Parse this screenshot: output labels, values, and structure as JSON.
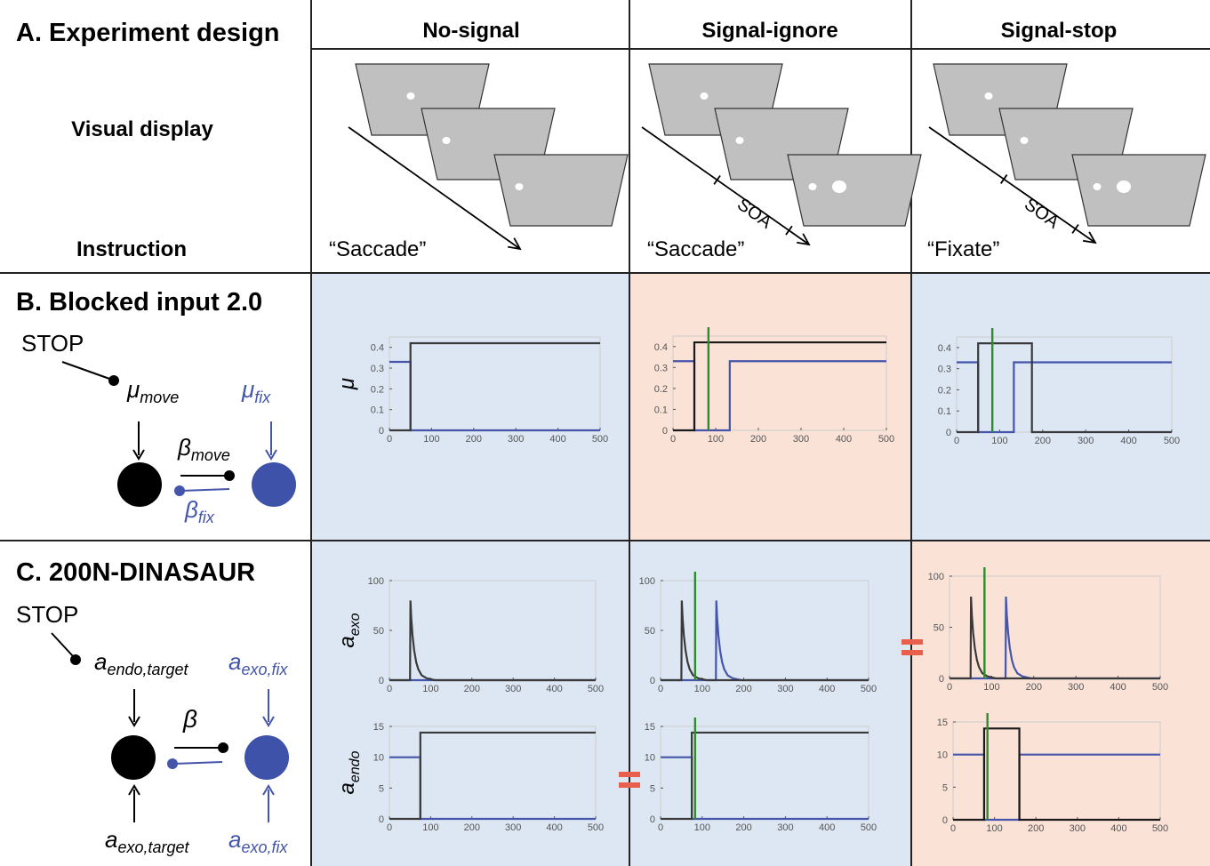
{
  "figure": {
    "title_a": "A. Experiment design",
    "columns": [
      "No-signal",
      "Signal-ignore",
      "Signal-stop"
    ],
    "row_labels": [
      "Visual display",
      "Instruction"
    ],
    "instructions": [
      "“Saccade”",
      "“Saccade”",
      "“Fixate”"
    ],
    "soa": "SOA",
    "title_b": "B. Blocked input 2.0",
    "title_c": "C. 200N-DINASAUR",
    "stop": "STOP",
    "b_diagram": {
      "input_move": [
        "μ",
        "move"
      ],
      "input_fix": [
        "μ",
        "fix"
      ],
      "inhibit_move": [
        "β",
        "move"
      ],
      "inhibit_fix": [
        "β",
        "fix"
      ]
    },
    "c_diagram": {
      "endo_target": [
        "a",
        "endo,target"
      ],
      "exo_fix_top": [
        "a",
        "exo,fix"
      ],
      "beta": "β",
      "exo_target": [
        "a",
        "exo,target"
      ],
      "exo_fix_bottom": [
        "a",
        "exo,fix"
      ]
    }
  },
  "chart_data": [
    {
      "type": "line",
      "ylabel": "μ",
      "xlim": [
        0,
        500
      ],
      "ylim": [
        0,
        0.45
      ],
      "xticks": [
        0,
        100,
        200,
        300,
        400,
        500
      ],
      "yticks": [
        0,
        0.1,
        0.2,
        0.3,
        0.4
      ],
      "series": [
        {
          "color": "#4455aa",
          "x": [
            0,
            50,
            50,
            500
          ],
          "values": [
            0.33,
            0.33,
            0,
            0
          ]
        },
        {
          "color": "#3a3a3a",
          "x": [
            0,
            50,
            50,
            500
          ],
          "values": [
            0,
            0,
            0.42,
            0.42
          ]
        }
      ]
    },
    {
      "type": "line",
      "xlim": [
        0,
        500
      ],
      "ylim": [
        0,
        0.45
      ],
      "xticks": [
        0,
        100,
        200,
        300,
        400,
        500
      ],
      "yticks": [
        0,
        0.1,
        0.2,
        0.3,
        0.4
      ],
      "vlines": [
        83
      ],
      "vline_color": "#2e8b2e",
      "series": [
        {
          "color": "#4455aa",
          "x": [
            0,
            50,
            50,
            133,
            133,
            500
          ],
          "values": [
            0.33,
            0.33,
            0,
            0,
            0.33,
            0.33
          ]
        },
        {
          "color": "#1a1a1a",
          "x": [
            0,
            50,
            50,
            500
          ],
          "values": [
            0,
            0,
            0.42,
            0.42
          ]
        }
      ]
    },
    {
      "type": "line",
      "xlim": [
        0,
        500
      ],
      "ylim": [
        0,
        0.45
      ],
      "xticks": [
        0,
        100,
        200,
        300,
        400,
        500
      ],
      "yticks": [
        0,
        0.1,
        0.2,
        0.3,
        0.4
      ],
      "vlines": [
        83
      ],
      "vline_color": "#2e8b2e",
      "series": [
        {
          "color": "#4455aa",
          "x": [
            0,
            50,
            50,
            133,
            133,
            500
          ],
          "values": [
            0.33,
            0.33,
            0,
            0,
            0.33,
            0.33
          ]
        },
        {
          "color": "#3a3a3a",
          "x": [
            0,
            50,
            50,
            175,
            175,
            500
          ],
          "values": [
            0,
            0,
            0.42,
            0.42,
            0,
            0
          ]
        }
      ]
    },
    {
      "type": "line",
      "ylabel": "a",
      "ylabel_sub": "exo",
      "xlim": [
        0,
        500
      ],
      "ylim": [
        0,
        100
      ],
      "xticks": [
        0,
        100,
        200,
        300,
        400,
        500
      ],
      "yticks": [
        0,
        50,
        100
      ],
      "series": [
        {
          "color": "#4455aa",
          "x": [
            0,
            500
          ],
          "values": [
            0,
            0
          ]
        },
        {
          "color": "#3a3a3a",
          "x": [
            0,
            50,
            51,
            53,
            56,
            60,
            65,
            70,
            78,
            90,
            110,
            500
          ],
          "values": [
            0,
            0,
            80,
            62,
            45,
            30,
            18,
            11,
            5,
            2,
            0,
            0
          ]
        }
      ]
    },
    {
      "type": "line",
      "xlim": [
        0,
        500
      ],
      "ylim": [
        0,
        100
      ],
      "xticks": [
        0,
        100,
        200,
        300,
        400,
        500
      ],
      "yticks": [
        0,
        50,
        100
      ],
      "vlines": [
        83
      ],
      "vline_color": "#2e8b2e",
      "series": [
        {
          "color": "#4455aa",
          "x": [
            0,
            133,
            134,
            136,
            139,
            143,
            148,
            153,
            161,
            173,
            193,
            500
          ],
          "values": [
            0,
            0,
            80,
            62,
            45,
            30,
            18,
            11,
            5,
            2,
            0,
            0
          ]
        },
        {
          "color": "#3a3a3a",
          "x": [
            0,
            50,
            51,
            53,
            56,
            60,
            65,
            70,
            78,
            90,
            110,
            500
          ],
          "values": [
            0,
            0,
            80,
            62,
            45,
            30,
            18,
            11,
            5,
            2,
            0,
            0
          ]
        }
      ]
    },
    {
      "type": "line",
      "xlim": [
        0,
        500
      ],
      "ylim": [
        0,
        100
      ],
      "xticks": [
        0,
        100,
        200,
        300,
        400,
        500
      ],
      "yticks": [
        0,
        50,
        100
      ],
      "vlines": [
        83
      ],
      "vline_color": "#2e8b2e",
      "series": [
        {
          "color": "#4455aa",
          "x": [
            0,
            133,
            134,
            136,
            139,
            143,
            148,
            153,
            161,
            173,
            193,
            500
          ],
          "values": [
            0,
            0,
            80,
            62,
            45,
            30,
            18,
            11,
            5,
            2,
            0,
            0
          ]
        },
        {
          "color": "#3a3a3a",
          "x": [
            0,
            50,
            51,
            53,
            56,
            60,
            65,
            70,
            78,
            90,
            110,
            500
          ],
          "values": [
            0,
            0,
            80,
            62,
            45,
            30,
            18,
            11,
            5,
            2,
            0,
            0
          ]
        }
      ]
    },
    {
      "type": "line",
      "ylabel": "a",
      "ylabel_sub": "endo",
      "xlim": [
        0,
        500
      ],
      "ylim": [
        0,
        15
      ],
      "xticks": [
        0,
        100,
        200,
        300,
        400,
        500
      ],
      "yticks": [
        0,
        5,
        10,
        15
      ],
      "series": [
        {
          "color": "#4455aa",
          "x": [
            0,
            75,
            75,
            500
          ],
          "values": [
            10,
            10,
            0,
            0
          ]
        },
        {
          "color": "#3a3a3a",
          "x": [
            0,
            75,
            75,
            500
          ],
          "values": [
            0,
            0,
            14,
            14
          ]
        }
      ]
    },
    {
      "type": "line",
      "xlim": [
        0,
        500
      ],
      "ylim": [
        0,
        15
      ],
      "xticks": [
        0,
        100,
        200,
        300,
        400,
        500
      ],
      "yticks": [
        0,
        5,
        10,
        15
      ],
      "vlines": [
        83
      ],
      "vline_color": "#2e8b2e",
      "series": [
        {
          "color": "#4455aa",
          "x": [
            0,
            75,
            75,
            500
          ],
          "values": [
            10,
            10,
            0,
            0
          ]
        },
        {
          "color": "#3a3a3a",
          "x": [
            0,
            75,
            75,
            500
          ],
          "values": [
            0,
            0,
            14,
            14
          ]
        }
      ]
    },
    {
      "type": "line",
      "xlim": [
        0,
        500
      ],
      "ylim": [
        0,
        15
      ],
      "xticks": [
        0,
        100,
        200,
        300,
        400,
        500
      ],
      "yticks": [
        0,
        5,
        10,
        15
      ],
      "vlines": [
        83
      ],
      "vline_color": "#2e8b2e",
      "series": [
        {
          "color": "#4455aa",
          "x": [
            0,
            75,
            75,
            160,
            160,
            500
          ],
          "values": [
            10,
            10,
            0,
            0,
            10,
            10
          ]
        },
        {
          "color": "#1a1a1a",
          "x": [
            0,
            75,
            75,
            160,
            160,
            500
          ],
          "values": [
            0,
            0,
            14,
            14,
            0,
            0
          ]
        }
      ]
    }
  ]
}
